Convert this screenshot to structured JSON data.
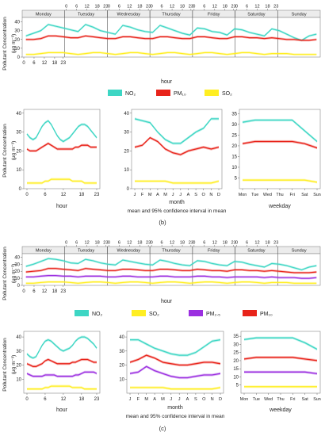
{
  "colors": {
    "no2": "#3dd6c4",
    "pm10": "#e8231a",
    "so2": "#ffee22",
    "pm25": "#9b2fe0"
  },
  "common": {
    "days": [
      "Monday",
      "Tuesday",
      "Wednesday",
      "Thursday",
      "Friday",
      "Saturday",
      "Sunday"
    ],
    "hour_ticks": [
      "0",
      "6",
      "12",
      "18",
      "23"
    ],
    "month_ticks": [
      "J",
      "F",
      "M",
      "A",
      "M",
      "J",
      "J",
      "A",
      "S",
      "O",
      "N",
      "D"
    ],
    "weekday_ticks": [
      "Mon",
      "Tue",
      "Wed",
      "Thu",
      "Fri",
      "Sat",
      "Sun"
    ],
    "ylabel": "Pollutant Concentration",
    "ylabel_unit": "(μg m⁻³)",
    "xlabel_hour": "hour",
    "xlabel_month": "month",
    "xlabel_weekday": "weekday",
    "ci_note": "mean and 95% confidence interval in mean"
  },
  "legends": {
    "b": [
      "NO₂",
      "PM₁₀",
      "SO₂"
    ],
    "c": [
      "NO₂",
      "SO₂",
      "PM₂.₅",
      "PM₁₀"
    ]
  },
  "captions": {
    "b": "(b)",
    "c": "(c)"
  },
  "chart_data": [
    {
      "id": "b-week",
      "type": "line",
      "xlabel": "hour",
      "ylim": [
        0,
        45
      ],
      "yticks": [
        0,
        10,
        20,
        30,
        40
      ],
      "series": [
        {
          "name": "NO₂",
          "key": "no2",
          "values": [
            24,
            27,
            30,
            37,
            35,
            33,
            31,
            29,
            37,
            34,
            30,
            28,
            26,
            36,
            34,
            31,
            29,
            28,
            36,
            33,
            30,
            27,
            25,
            33,
            32,
            29,
            28,
            25,
            32,
            31,
            28,
            26,
            24,
            32,
            30,
            26,
            22,
            19,
            24,
            26
          ]
        },
        {
          "name": "PM₁₀",
          "key": "pm10",
          "values": [
            20,
            20,
            21,
            24,
            24,
            23,
            22,
            22,
            24,
            23,
            22,
            21,
            21,
            23,
            23,
            22,
            21,
            21,
            23,
            23,
            22,
            21,
            21,
            23,
            23,
            22,
            21,
            21,
            23,
            23,
            22,
            22,
            21,
            22,
            21,
            20,
            20,
            19,
            19,
            20
          ]
        },
        {
          "name": "SO₂",
          "key": "so2",
          "values": [
            3,
            3,
            4,
            5,
            5,
            5,
            4,
            3,
            4,
            5,
            5,
            4,
            3,
            4,
            5,
            5,
            4,
            3,
            4,
            5,
            5,
            4,
            3,
            4,
            5,
            5,
            4,
            3,
            4,
            5,
            5,
            4,
            3,
            4,
            4,
            4,
            3,
            3,
            3,
            3
          ]
        }
      ]
    },
    {
      "id": "b-hour",
      "type": "line",
      "xlabel": "hour",
      "ylim": [
        0,
        42
      ],
      "yticks": [
        0,
        10,
        20,
        30,
        40
      ],
      "x": [
        0,
        1,
        2,
        3,
        4,
        5,
        6,
        7,
        8,
        9,
        10,
        11,
        12,
        13,
        14,
        15,
        16,
        17,
        18,
        19,
        20,
        21,
        22,
        23
      ],
      "series": [
        {
          "name": "NO₂",
          "key": "no2",
          "values": [
            29,
            27,
            26,
            27,
            30,
            33,
            35,
            36,
            34,
            31,
            28,
            26,
            25,
            26,
            27,
            29,
            31,
            33,
            34,
            34,
            33,
            31,
            29,
            27
          ]
        },
        {
          "name": "PM₁₀",
          "key": "pm10",
          "values": [
            21,
            20,
            20,
            20,
            21,
            22,
            23,
            24,
            23,
            22,
            21,
            21,
            21,
            21,
            21,
            21,
            22,
            22,
            23,
            23,
            23,
            22,
            22,
            22
          ]
        },
        {
          "name": "SO₂",
          "key": "so2",
          "values": [
            3,
            3,
            3,
            3,
            3,
            3,
            4,
            4,
            5,
            5,
            5,
            5,
            5,
            5,
            5,
            4,
            4,
            4,
            4,
            3,
            3,
            3,
            3,
            3
          ]
        }
      ]
    },
    {
      "id": "b-month",
      "type": "line",
      "xlabel": "month",
      "ylim": [
        0,
        42
      ],
      "yticks": [
        0,
        10,
        20,
        30,
        40
      ],
      "categories": [
        "J",
        "F",
        "M",
        "A",
        "M",
        "J",
        "J",
        "A",
        "S",
        "O",
        "N",
        "D"
      ],
      "series": [
        {
          "name": "NO₂",
          "key": "no2",
          "values": [
            37,
            36,
            35,
            30,
            26,
            24,
            24,
            27,
            30,
            32,
            37,
            37
          ]
        },
        {
          "name": "PM₁₀",
          "key": "pm10",
          "values": [
            22,
            23,
            27,
            25,
            21,
            19,
            18,
            20,
            21,
            22,
            21,
            22
          ]
        },
        {
          "name": "SO₂",
          "key": "so2",
          "values": [
            4,
            4,
            4,
            4,
            4,
            3,
            3,
            3,
            3,
            3,
            3,
            4
          ]
        }
      ]
    },
    {
      "id": "b-weekday",
      "type": "line",
      "xlabel": "weekday",
      "ylim": [
        0,
        37
      ],
      "yticks": [
        5,
        10,
        15,
        20,
        25,
        30,
        35
      ],
      "categories": [
        "Mon",
        "Tue",
        "Wed",
        "Thu",
        "Fri",
        "Sat",
        "Sun"
      ],
      "series": [
        {
          "name": "NO₂",
          "key": "no2",
          "values": [
            31,
            32,
            32,
            32,
            32,
            27,
            22
          ]
        },
        {
          "name": "PM₁₀",
          "key": "pm10",
          "values": [
            21,
            22,
            22,
            22,
            22,
            21,
            19
          ]
        },
        {
          "name": "SO₂",
          "key": "so2",
          "values": [
            4,
            4,
            4,
            4,
            4,
            4,
            3
          ]
        }
      ]
    },
    {
      "id": "c-week",
      "type": "line",
      "xlabel": "hour",
      "ylim": [
        0,
        45
      ],
      "yticks": [
        0,
        10,
        20,
        30,
        40
      ],
      "series": [
        {
          "name": "NO₂",
          "key": "no2",
          "values": [
            27,
            30,
            34,
            38,
            37,
            35,
            32,
            31,
            37,
            35,
            32,
            30,
            29,
            36,
            34,
            32,
            30,
            29,
            36,
            34,
            31,
            29,
            28,
            35,
            34,
            31,
            29,
            28,
            34,
            33,
            30,
            28,
            26,
            31,
            30,
            28,
            25,
            22,
            26,
            28
          ]
        },
        {
          "name": "PM₁₀",
          "key": "pm10",
          "values": [
            19,
            20,
            21,
            24,
            24,
            23,
            22,
            21,
            24,
            23,
            22,
            21,
            21,
            23,
            23,
            22,
            21,
            21,
            23,
            23,
            22,
            21,
            21,
            23,
            22,
            21,
            21,
            20,
            22,
            22,
            21,
            21,
            20,
            21,
            20,
            19,
            18,
            18,
            18,
            19
          ]
        },
        {
          "name": "PM₂.₅",
          "key": "pm25",
          "values": [
            12,
            12,
            13,
            14,
            14,
            13,
            13,
            12,
            13,
            13,
            13,
            12,
            12,
            13,
            13,
            12,
            12,
            12,
            13,
            13,
            12,
            12,
            12,
            13,
            13,
            12,
            12,
            11,
            12,
            12,
            12,
            12,
            11,
            12,
            11,
            11,
            11,
            10,
            10,
            11
          ]
        },
        {
          "name": "SO₂",
          "key": "so2",
          "values": [
            3,
            3,
            4,
            5,
            5,
            5,
            4,
            3,
            4,
            5,
            5,
            4,
            3,
            4,
            5,
            5,
            4,
            3,
            4,
            5,
            5,
            4,
            3,
            4,
            5,
            5,
            4,
            3,
            4,
            5,
            5,
            4,
            3,
            4,
            4,
            4,
            3,
            3,
            3,
            3
          ]
        }
      ]
    },
    {
      "id": "c-hour",
      "type": "line",
      "xlabel": "hour",
      "ylim": [
        0,
        44
      ],
      "yticks": [
        10,
        20,
        30,
        40
      ],
      "x": [
        0,
        1,
        2,
        3,
        4,
        5,
        6,
        7,
        8,
        9,
        10,
        11,
        12,
        13,
        14,
        15,
        16,
        17,
        18,
        19,
        20,
        21,
        22,
        23
      ],
      "series": [
        {
          "name": "NO₂",
          "key": "no2",
          "values": [
            28,
            26,
            25,
            26,
            30,
            34,
            37,
            38,
            37,
            35,
            33,
            31,
            30,
            31,
            32,
            34,
            37,
            39,
            40,
            40,
            39,
            37,
            35,
            32
          ]
        },
        {
          "name": "PM₁₀",
          "key": "pm10",
          "values": [
            21,
            20,
            19,
            19,
            20,
            21,
            23,
            24,
            23,
            22,
            21,
            21,
            21,
            21,
            21,
            22,
            22,
            23,
            24,
            24,
            24,
            23,
            22,
            22
          ]
        },
        {
          "name": "PM₂.₅",
          "key": "pm25",
          "values": [
            14,
            13,
            12,
            12,
            12,
            12,
            13,
            13,
            13,
            13,
            12,
            12,
            12,
            12,
            12,
            12,
            13,
            13,
            14,
            15,
            15,
            15,
            15,
            14
          ]
        },
        {
          "name": "SO₂",
          "key": "so2",
          "values": [
            3,
            3,
            3,
            3,
            3,
            3,
            4,
            4,
            5,
            5,
            5,
            5,
            5,
            5,
            5,
            4,
            4,
            4,
            4,
            3,
            3,
            3,
            3,
            3
          ]
        }
      ]
    },
    {
      "id": "c-month",
      "type": "line",
      "xlabel": "month",
      "ylim": [
        0,
        44
      ],
      "yticks": [
        10,
        20,
        30,
        40
      ],
      "categories": [
        "J",
        "F",
        "M",
        "A",
        "M",
        "J",
        "J",
        "A",
        "S",
        "O",
        "N",
        "D"
      ],
      "series": [
        {
          "name": "NO₂",
          "key": "no2",
          "values": [
            38,
            38,
            35,
            32,
            30,
            28,
            27,
            27,
            29,
            33,
            37,
            38
          ]
        },
        {
          "name": "PM₁₀",
          "key": "pm10",
          "values": [
            22,
            24,
            27,
            25,
            22,
            21,
            20,
            20,
            21,
            22,
            22,
            21
          ]
        },
        {
          "name": "PM₂.₅",
          "key": "pm25",
          "values": [
            14,
            15,
            19,
            16,
            14,
            12,
            11,
            11,
            12,
            13,
            13,
            14
          ]
        },
        {
          "name": "SO₂",
          "key": "so2",
          "values": [
            4,
            4,
            4,
            4,
            4,
            3,
            3,
            3,
            3,
            3,
            3,
            4
          ]
        }
      ]
    },
    {
      "id": "c-weekday",
      "type": "line",
      "xlabel": "weekday",
      "ylim": [
        0,
        38
      ],
      "yticks": [
        5,
        10,
        15,
        20,
        25,
        30,
        35
      ],
      "categories": [
        "Mon",
        "Tue",
        "Wed",
        "Thu",
        "Fri",
        "Sat",
        "Sun"
      ],
      "series": [
        {
          "name": "NO₂",
          "key": "no2",
          "values": [
            33,
            34,
            34,
            34,
            34,
            31,
            27
          ]
        },
        {
          "name": "PM₁₀",
          "key": "pm10",
          "values": [
            21,
            22,
            22,
            22,
            22,
            21,
            20
          ]
        },
        {
          "name": "PM₂.₅",
          "key": "pm25",
          "values": [
            13,
            13,
            13,
            13,
            13,
            13,
            12
          ]
        },
        {
          "name": "SO₂",
          "key": "so2",
          "values": [
            4,
            4,
            4,
            4,
            4,
            4,
            4
          ]
        }
      ]
    }
  ]
}
